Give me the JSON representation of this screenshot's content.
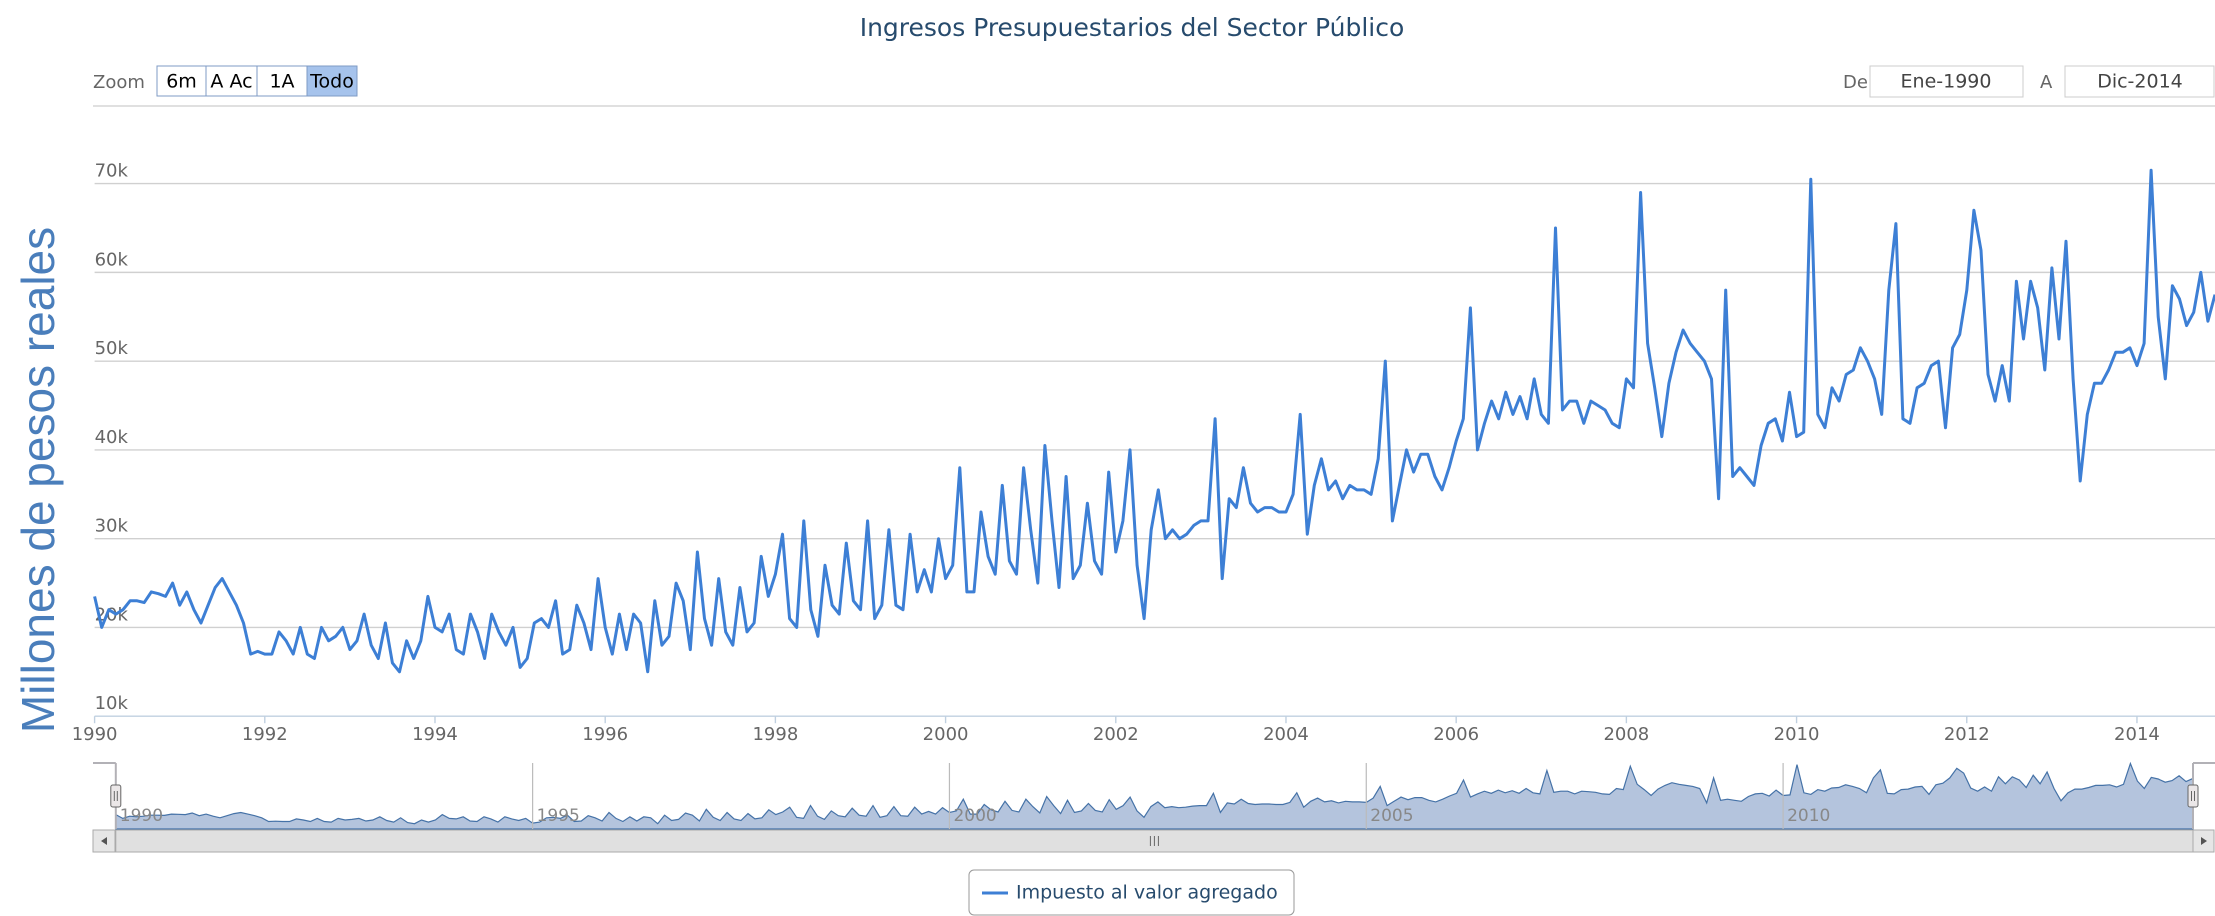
{
  "chart_data": {
    "type": "line",
    "title": "Ingresos Presupuestarios del Sector Público",
    "y_axis_label": "Millones de pesos reales",
    "x": [
      "1990-01",
      "1990-02",
      "1990-03",
      "1990-04",
      "1990-05",
      "1990-06",
      "1990-07",
      "1990-08",
      "1990-09",
      "1990-10",
      "1990-11",
      "1990-12",
      "1991-01",
      "1991-02",
      "1991-03",
      "1991-04",
      "1991-05",
      "1991-06",
      "1991-07",
      "1991-08",
      "1991-09",
      "1991-10",
      "1991-11",
      "1991-12",
      "1992-01",
      "1992-02",
      "1992-03",
      "1992-04",
      "1992-05",
      "1992-06",
      "1992-07",
      "1992-08",
      "1992-09",
      "1992-10",
      "1992-11",
      "1992-12",
      "1993-01",
      "1993-02",
      "1993-03",
      "1993-04",
      "1993-05",
      "1993-06",
      "1993-07",
      "1993-08",
      "1993-09",
      "1993-10",
      "1993-11",
      "1993-12",
      "1994-01",
      "1994-02",
      "1994-03",
      "1994-04",
      "1994-05",
      "1994-06",
      "1994-07",
      "1994-08",
      "1994-09",
      "1994-10",
      "1994-11",
      "1994-12",
      "1995-01",
      "1995-02",
      "1995-03",
      "1995-04",
      "1995-05",
      "1995-06",
      "1995-07",
      "1995-08",
      "1995-09",
      "1995-10",
      "1995-11",
      "1995-12",
      "1996-01",
      "1996-02",
      "1996-03",
      "1996-04",
      "1996-05",
      "1996-06",
      "1996-07",
      "1996-08",
      "1996-09",
      "1996-10",
      "1996-11",
      "1996-12",
      "1997-01",
      "1997-02",
      "1997-03",
      "1997-04",
      "1997-05",
      "1997-06",
      "1997-07",
      "1997-08",
      "1997-09",
      "1997-10",
      "1997-11",
      "1997-12",
      "1998-01",
      "1998-02",
      "1998-03",
      "1998-04",
      "1998-05",
      "1998-06",
      "1998-07",
      "1998-08",
      "1998-09",
      "1998-10",
      "1998-11",
      "1998-12",
      "1999-01",
      "1999-02",
      "1999-03",
      "1999-04",
      "1999-05",
      "1999-06",
      "1999-07",
      "1999-08",
      "1999-09",
      "1999-10",
      "1999-11",
      "1999-12",
      "2000-01",
      "2000-02",
      "2000-03",
      "2000-04",
      "2000-05",
      "2000-06",
      "2000-07",
      "2000-08",
      "2000-09",
      "2000-10",
      "2000-11",
      "2000-12",
      "2001-01",
      "2001-02",
      "2001-03",
      "2001-04",
      "2001-05",
      "2001-06",
      "2001-07",
      "2001-08",
      "2001-09",
      "2001-10",
      "2001-11",
      "2001-12",
      "2002-01",
      "2002-02",
      "2002-03",
      "2002-04",
      "2002-05",
      "2002-06",
      "2002-07",
      "2002-08",
      "2002-09",
      "2002-10",
      "2002-11",
      "2002-12",
      "2003-01",
      "2003-02",
      "2003-03",
      "2003-04",
      "2003-05",
      "2003-06",
      "2003-07",
      "2003-08",
      "2003-09",
      "2003-10",
      "2003-11",
      "2003-12",
      "2004-01",
      "2004-02",
      "2004-03",
      "2004-04",
      "2004-05",
      "2004-06",
      "2004-07",
      "2004-08",
      "2004-09",
      "2004-10",
      "2004-11",
      "2004-12",
      "2005-01",
      "2005-02",
      "2005-03",
      "2005-04",
      "2005-05",
      "2005-06",
      "2005-07",
      "2005-08",
      "2005-09",
      "2005-10",
      "2005-11",
      "2005-12",
      "2006-01",
      "2006-02",
      "2006-03",
      "2006-04",
      "2006-05",
      "2006-06",
      "2006-07",
      "2006-08",
      "2006-09",
      "2006-10",
      "2006-11",
      "2006-12",
      "2007-01",
      "2007-02",
      "2007-03",
      "2007-04",
      "2007-05",
      "2007-06",
      "2007-07",
      "2007-08",
      "2007-09",
      "2007-10",
      "2007-11",
      "2007-12",
      "2008-01",
      "2008-02",
      "2008-03",
      "2008-04",
      "2008-05",
      "2008-06",
      "2008-07",
      "2008-08",
      "2008-09",
      "2008-10",
      "2008-11",
      "2008-12",
      "2009-01",
      "2009-02",
      "2009-03",
      "2009-04",
      "2009-05",
      "2009-06",
      "2009-07",
      "2009-08",
      "2009-09",
      "2009-10",
      "2009-11",
      "2009-12",
      "2010-01",
      "2010-02",
      "2010-03",
      "2010-04",
      "2010-05",
      "2010-06",
      "2010-07",
      "2010-08",
      "2010-09",
      "2010-10",
      "2010-11",
      "2010-12",
      "2011-01",
      "2011-02",
      "2011-03",
      "2011-04",
      "2011-05",
      "2011-06",
      "2011-07",
      "2011-08",
      "2011-09",
      "2011-10",
      "2011-11",
      "2011-12",
      "2012-01",
      "2012-02",
      "2012-03",
      "2012-04",
      "2012-05",
      "2012-06",
      "2012-07",
      "2012-08",
      "2012-09",
      "2012-10",
      "2012-11",
      "2012-12",
      "2013-01",
      "2013-02",
      "2013-03",
      "2013-04",
      "2013-05",
      "2013-06",
      "2013-07",
      "2013-08",
      "2013-09",
      "2013-10",
      "2013-11",
      "2013-12",
      "2014-01",
      "2014-02",
      "2014-03",
      "2014-04",
      "2014-05",
      "2014-06",
      "2014-07",
      "2014-08",
      "2014-09",
      "2014-10",
      "2014-11",
      "2014-12"
    ],
    "series": [
      {
        "name": "Impuesto al valor agregado",
        "color": "#3d7fd5",
        "values": [
          23500,
          20000,
          22000,
          21500,
          22000,
          23000,
          23000,
          22800,
          24000,
          23800,
          23500,
          25000,
          22500,
          24000,
          22000,
          20500,
          22500,
          24500,
          25500,
          24000,
          22500,
          20500,
          17000,
          17300,
          17000,
          17000,
          19500,
          18500,
          17000,
          20000,
          17000,
          16500,
          20000,
          18500,
          19000,
          20000,
          17500,
          18500,
          21500,
          18000,
          16500,
          20500,
          16000,
          15000,
          18500,
          16500,
          18500,
          23500,
          20000,
          19500,
          21500,
          17500,
          17000,
          21500,
          19500,
          16500,
          21500,
          19500,
          18000,
          20000,
          15500,
          16500,
          20500,
          21000,
          20000,
          23000,
          17000,
          17500,
          22500,
          20500,
          17500,
          25500,
          20000,
          17000,
          21500,
          17500,
          21500,
          20500,
          15000,
          23000,
          18000,
          19000,
          25000,
          23000,
          17500,
          28500,
          21000,
          18000,
          25500,
          19500,
          18000,
          24500,
          19500,
          20500,
          28000,
          23500,
          26000,
          30500,
          21000,
          20000,
          32000,
          22000,
          19000,
          27000,
          22500,
          21500,
          29500,
          23000,
          22000,
          32000,
          21000,
          22500,
          31000,
          22500,
          22000,
          30500,
          24000,
          26500,
          24000,
          30000,
          25500,
          27000,
          38000,
          24000,
          24000,
          33000,
          28000,
          26000,
          36000,
          27500,
          26000,
          38000,
          31000,
          25000,
          40500,
          32000,
          24500,
          37000,
          25500,
          27000,
          34000,
          27500,
          26000,
          37500,
          28500,
          32000,
          40000,
          27000,
          21000,
          31000,
          35500,
          30000,
          31000,
          30000,
          30500,
          31500,
          32000,
          32000,
          43500,
          25500,
          34500,
          33500,
          38000,
          34000,
          33000,
          33500,
          33500,
          33000,
          33000,
          35000,
          44000,
          30500,
          36000,
          39000,
          35500,
          36500,
          34500,
          36000,
          35500,
          35500,
          35000,
          39000,
          50000,
          32000,
          36000,
          40000,
          37500,
          39500,
          39500,
          37000,
          35500,
          38000,
          41000,
          43500,
          56000,
          40000,
          43000,
          45500,
          43500,
          46500,
          44000,
          46000,
          43500,
          48000,
          44000,
          43000,
          65000,
          44500,
          45500,
          45500,
          43000,
          45500,
          45000,
          44500,
          43000,
          42500,
          48000,
          47000,
          69000,
          52000,
          47000,
          41500,
          47500,
          51000,
          53500,
          52000,
          51000,
          50000,
          48000,
          34500,
          58000,
          37000,
          38000,
          37000,
          36000,
          40500,
          43000,
          43500,
          41000,
          46500,
          41500,
          42000,
          70500,
          44000,
          42500,
          47000,
          45500,
          48500,
          49000,
          51500,
          50000,
          48000,
          44000,
          58000,
          65500,
          43500,
          43000,
          47000,
          47500,
          49500,
          50000,
          42500,
          51500,
          53000,
          58000,
          67000,
          62500,
          48500,
          45500,
          49500,
          45500,
          59000,
          52500,
          59000,
          56000,
          49000,
          60500,
          52500,
          63500,
          48000,
          36500,
          44000,
          47500,
          47500,
          49000,
          51000,
          51000,
          51500,
          49500,
          52000,
          71500,
          55000,
          48000,
          58500,
          57000,
          54000,
          55500,
          60000,
          54500,
          57500
        ]
      }
    ],
    "xlim": [
      1990,
      2014.917
    ],
    "xticks": [
      1990,
      1992,
      1994,
      1996,
      1998,
      2000,
      2002,
      2004,
      2006,
      2008,
      2010,
      2012,
      2014
    ],
    "ylim": [
      10000,
      78000
    ],
    "yticks": [
      {
        "value": 10000,
        "label": "10k"
      },
      {
        "value": 20000,
        "label": "20k"
      },
      {
        "value": 30000,
        "label": "30k"
      },
      {
        "value": 40000,
        "label": "40k"
      },
      {
        "value": 50000,
        "label": "50k"
      },
      {
        "value": 60000,
        "label": "60k"
      },
      {
        "value": 70000,
        "label": "70k"
      }
    ],
    "grid": true,
    "navigator": {
      "xticks": [
        1990,
        1995,
        2000,
        2005,
        2010
      ],
      "ylim": [
        10000,
        72000
      ]
    }
  },
  "range_selector": {
    "zoom_label": "Zoom",
    "buttons": [
      "6m",
      "A Ac",
      "1A",
      "Todo"
    ],
    "selected": 3,
    "from_label": "De",
    "from": "Ene-1990",
    "to_label": "A",
    "to": "Dic-2014"
  }
}
